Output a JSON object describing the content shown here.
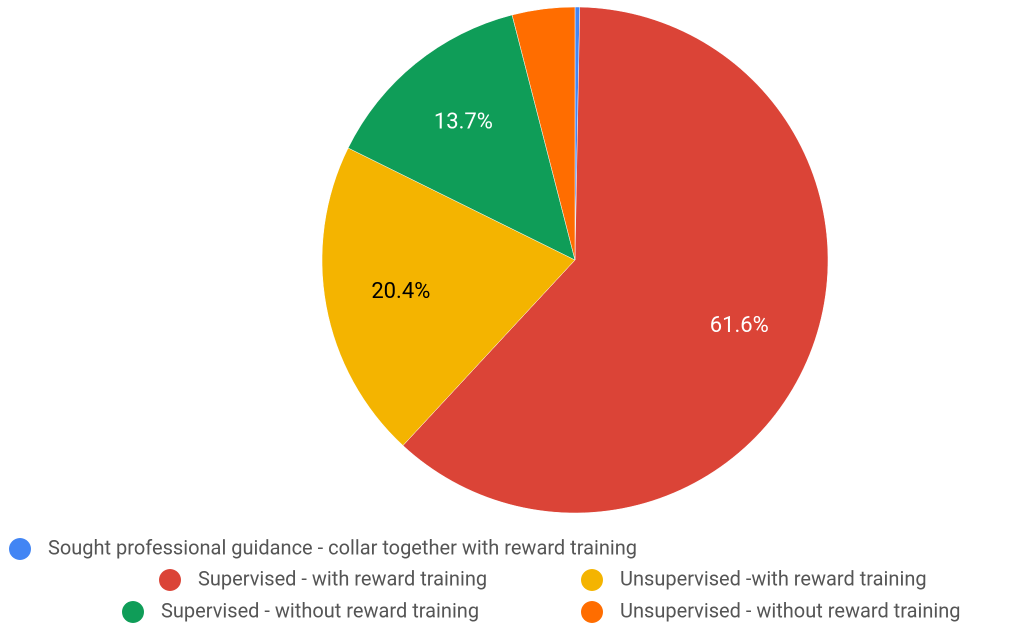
{
  "chart_data": {
    "type": "pie",
    "categories": [
      "Sought professional guidance - collar together with reward training",
      "Supervised - with reward training",
      "Unsupervised -with reward training",
      "Supervised - without reward training",
      "Unsupervised - without reward training"
    ],
    "values": [
      0.3,
      61.6,
      20.4,
      13.7,
      4.0
    ],
    "value_labels": [
      null,
      "61.6%",
      "20.4%",
      "13.7%",
      null
    ],
    "colors": [
      "#4285f4",
      "#db4437",
      "#f4b400",
      "#0f9d58",
      "#ff6d00"
    ],
    "label_colors": [
      "#ffffff",
      "#ffffff",
      "#000000",
      "#ffffff",
      "#ffffff"
    ]
  }
}
